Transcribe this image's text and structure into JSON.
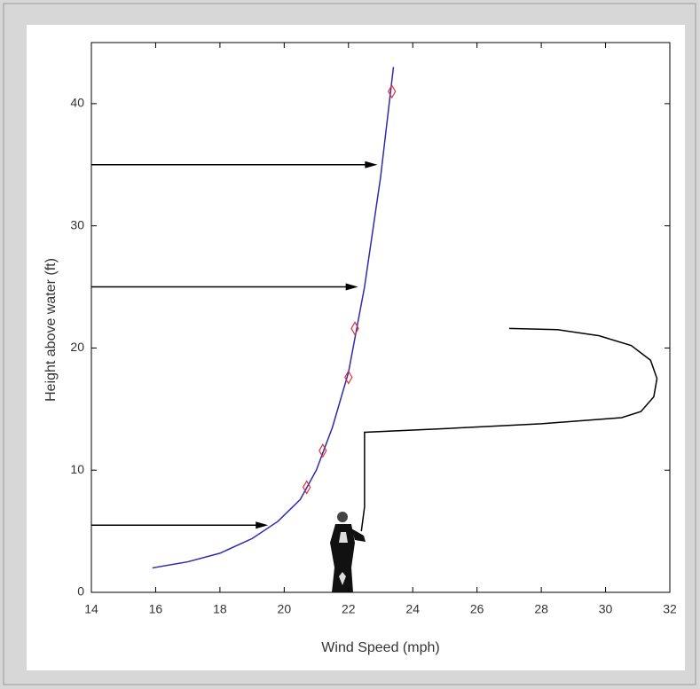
{
  "chart_data": {
    "type": "line",
    "xlabel": "Wind Speed (mph)",
    "ylabel": "Height above water (ft)",
    "xlim": [
      14,
      32
    ],
    "ylim": [
      0,
      45
    ],
    "xticks": [
      14,
      16,
      18,
      20,
      22,
      24,
      26,
      28,
      30,
      32
    ],
    "yticks": [
      0,
      10,
      20,
      30,
      40
    ],
    "curve": {
      "color": "#2b2bb0",
      "x": [
        15.9,
        17,
        18,
        19,
        19.8,
        20.5,
        21,
        21.5,
        22,
        22.5,
        23,
        23.4
      ],
      "y": [
        2,
        2.5,
        3.2,
        4.4,
        5.8,
        7.6,
        10,
        13.5,
        18,
        25,
        34,
        43
      ]
    },
    "observations": {
      "color": "#e0303a",
      "x": [
        20.7,
        21.2,
        22.0,
        22.2,
        23.35
      ],
      "y": [
        8.6,
        11.6,
        17.6,
        21.6,
        41
      ]
    },
    "arrows": {
      "color": "#000000",
      "y": [
        5.5,
        25,
        35
      ],
      "x": [
        19.5,
        22.3,
        22.9
      ]
    },
    "fishing_line": {
      "color": "#000000",
      "x": [
        22.4,
        22.5,
        22.5,
        25,
        28,
        30.5,
        31.1,
        31.5,
        31.6,
        31.4,
        30.8,
        29.8,
        28.5,
        27
      ],
      "y": [
        5,
        7,
        13.1,
        13.4,
        13.8,
        14.3,
        14.8,
        16,
        17.5,
        19,
        20.2,
        21,
        21.5,
        21.6
      ]
    }
  }
}
